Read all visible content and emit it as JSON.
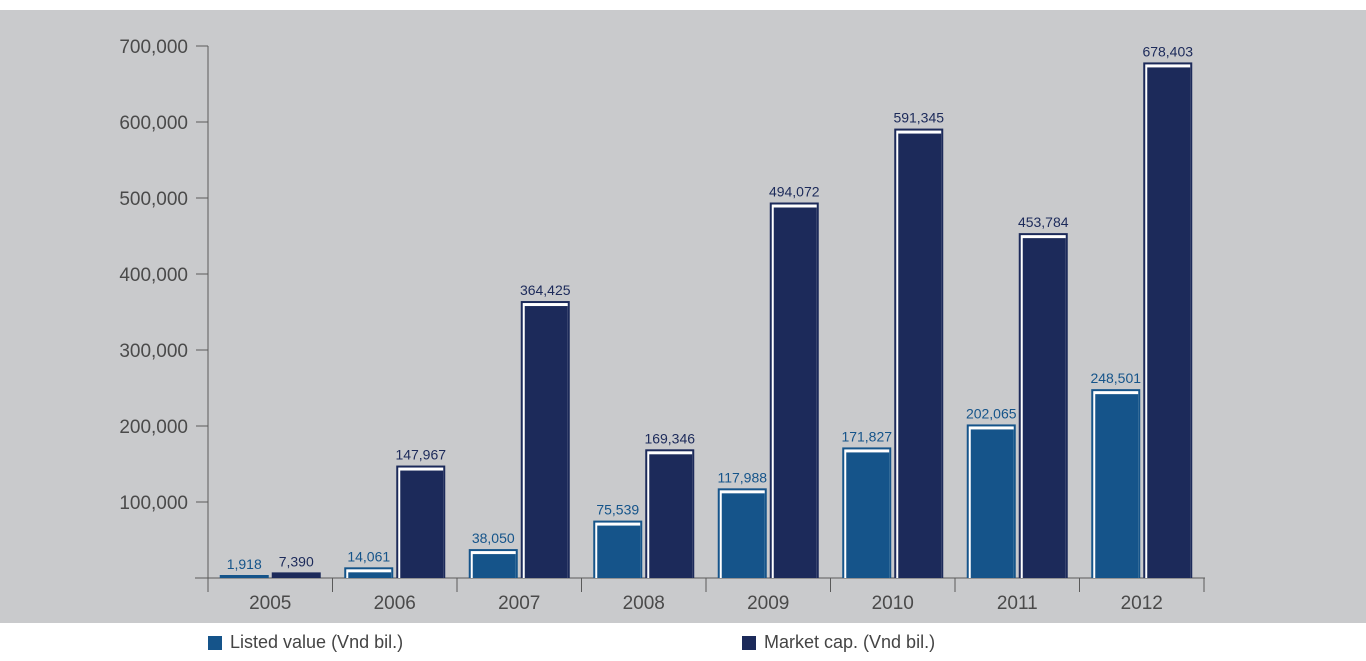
{
  "chart_data": {
    "type": "bar",
    "categories": [
      "2005",
      "2006",
      "2007",
      "2008",
      "2009",
      "2010",
      "2011",
      "2012"
    ],
    "series": [
      {
        "name": "Listed value (Vnd bil.)",
        "values": [
          1918,
          14061,
          38050,
          75539,
          117988,
          171827,
          202065,
          248501
        ],
        "labels": [
          "1,918",
          "14,061",
          "38,050",
          "75,539",
          "117,988",
          "171,827",
          "202,065",
          "248,501"
        ],
        "color": "#15548a"
      },
      {
        "name": "Market cap. (Vnd bil.)",
        "values": [
          7390,
          147967,
          364425,
          169346,
          494072,
          591345,
          453784,
          678403
        ],
        "labels": [
          "7,390",
          "147,967",
          "364,425",
          "169,346",
          "494,072",
          "591,345",
          "453,784",
          "678,403"
        ],
        "color": "#1c2a5a"
      }
    ],
    "yticks": [
      "100,000",
      "200,000",
      "300,000",
      "400,000",
      "500,000",
      "600,000",
      "700,000"
    ],
    "ylim": [
      0,
      700000
    ],
    "grid": false,
    "legend_position": "bottom"
  }
}
